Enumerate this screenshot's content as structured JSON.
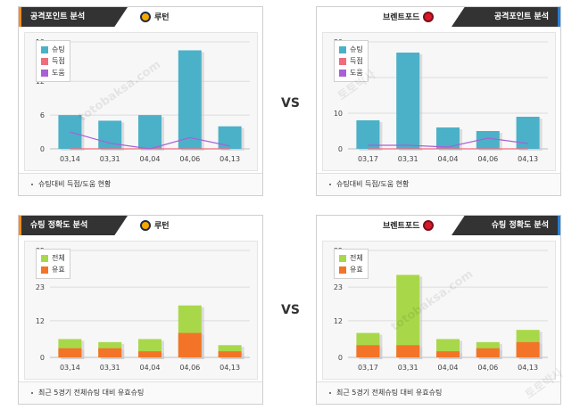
{
  "vs_label": "VS",
  "watermark": [
    "토토박사",
    "totobaksa.com"
  ],
  "colors": {
    "shoot": "#4bb1c8",
    "goal": "#f06b7e",
    "assist": "#a860d6",
    "total": "#a8d84a",
    "effective": "#f37428"
  },
  "panels": [
    {
      "id": "tl",
      "side": "left",
      "header": "공격포인트 분석",
      "team": "루턴",
      "badge": "luton",
      "caption": "슈팅대비 득점/도움 현황",
      "legend": [
        {
          "label": "슈팅",
          "color": "#4bb1c8"
        },
        {
          "label": "득점",
          "color": "#f06b7e"
        },
        {
          "label": "도움",
          "color": "#a860d6"
        }
      ]
    },
    {
      "id": "tr",
      "side": "right",
      "header": "공격포인트 분석",
      "team": "브렌트포드",
      "badge": "brent",
      "caption": "슈팅대비 득점/도움 현황",
      "legend": [
        {
          "label": "슈팅",
          "color": "#4bb1c8"
        },
        {
          "label": "득점",
          "color": "#f06b7e"
        },
        {
          "label": "도움",
          "color": "#a860d6"
        }
      ]
    },
    {
      "id": "bl",
      "side": "left",
      "header": "슈팅 정확도 분석",
      "team": "루턴",
      "badge": "luton",
      "caption": "최근 5경기 전체슈팅 대비 유효슈팅",
      "legend": [
        {
          "label": "전체",
          "color": "#a8d84a"
        },
        {
          "label": "유효",
          "color": "#f37428"
        }
      ]
    },
    {
      "id": "br",
      "side": "right",
      "header": "슈팅 정확도 분석",
      "team": "브렌트포드",
      "badge": "brent",
      "caption": "최근 5경기 전체슈팅 대비 유효슈팅",
      "legend": [
        {
          "label": "전체",
          "color": "#a8d84a"
        },
        {
          "label": "유효",
          "color": "#f37428"
        }
      ]
    }
  ],
  "chart_data": [
    {
      "type": "bar",
      "panel": "tl",
      "categories": [
        "03,14",
        "03,31",
        "04,04",
        "04,06",
        "04,13"
      ],
      "yticks": [
        0,
        6,
        12,
        19
      ],
      "ylim": [
        0,
        19
      ],
      "series": [
        {
          "name": "슈팅",
          "kind": "bar",
          "values": [
            6,
            5,
            6,
            17.5,
            4
          ]
        },
        {
          "name": "득점",
          "kind": "line",
          "values": [
            0,
            0,
            0,
            0,
            0
          ]
        },
        {
          "name": "도움",
          "kind": "line",
          "values": [
            3,
            1,
            0,
            2,
            0.5
          ]
        }
      ]
    },
    {
      "type": "bar",
      "panel": "tr",
      "categories": [
        "03,17",
        "03,31",
        "04,04",
        "04,06",
        "04,13"
      ],
      "yticks": [
        0,
        10,
        20,
        30
      ],
      "ylim": [
        0,
        30
      ],
      "series": [
        {
          "name": "슈팅",
          "kind": "bar",
          "values": [
            8,
            27,
            6,
            5,
            9
          ]
        },
        {
          "name": "득점",
          "kind": "line",
          "values": [
            0,
            0,
            0,
            0,
            0
          ]
        },
        {
          "name": "도움",
          "kind": "line",
          "values": [
            1,
            1,
            0.5,
            3,
            1.5
          ]
        }
      ]
    },
    {
      "type": "bar",
      "panel": "bl",
      "categories": [
        "03,14",
        "03,31",
        "04,04",
        "04,06",
        "04,13"
      ],
      "yticks": [
        0,
        12,
        23,
        35
      ],
      "ylim": [
        0,
        35
      ],
      "series": [
        {
          "name": "전체",
          "kind": "bar",
          "values": [
            6,
            5,
            6,
            17,
            4
          ]
        },
        {
          "name": "유효",
          "kind": "bar",
          "values": [
            3,
            3,
            2,
            8,
            2
          ]
        }
      ]
    },
    {
      "type": "bar",
      "panel": "br",
      "categories": [
        "03,17",
        "03,31",
        "04,04",
        "04,06",
        "04,13"
      ],
      "yticks": [
        0,
        12,
        23,
        35
      ],
      "ylim": [
        0,
        35
      ],
      "series": [
        {
          "name": "전체",
          "kind": "bar",
          "values": [
            8,
            27,
            6,
            5,
            9
          ]
        },
        {
          "name": "유효",
          "kind": "bar",
          "values": [
            4,
            4,
            2,
            3,
            5
          ]
        }
      ]
    }
  ]
}
